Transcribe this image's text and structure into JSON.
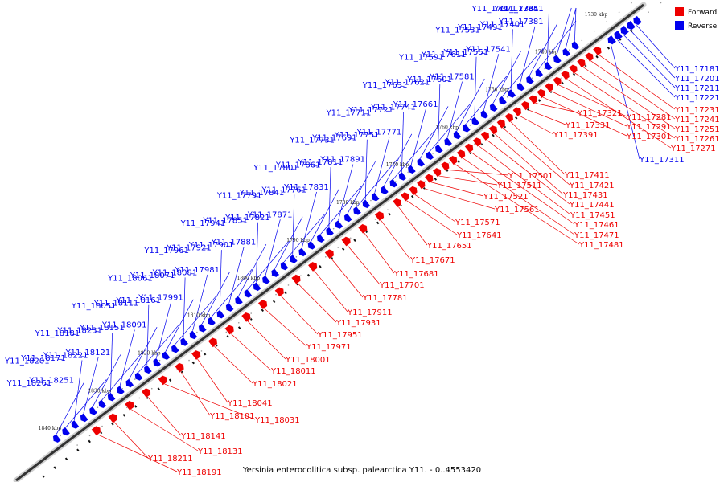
{
  "caption": "Yersinia enterocolitica subsp. palearctica Y11. - 0..4553420",
  "legend": [
    {
      "label": "Forward",
      "color": "#ee0000"
    },
    {
      "label": "Reverse",
      "color": "#0000ee"
    }
  ],
  "colors": {
    "forward": "#ee0000",
    "reverse": "#0000ee",
    "backbone": "#333333"
  },
  "kbp_ticks": [
    "1730 kbp",
    "1740 kbp",
    "1750 kbp",
    "1760 kbp",
    "1770 kbp",
    "1780 kbp",
    "1790 kbp",
    "1800 kbp",
    "1810 kbp",
    "1820 kbp",
    "1830 kbp",
    "1840 kbp"
  ],
  "reverse_genes_upper_left": [
    "Y11_17341",
    "Y11_17351",
    "Y11_17361",
    "Y11_17371",
    "Y11_17381",
    "Y11_17401",
    "Y11_17491",
    "Y11_17531",
    "Y11_17541",
    "Y11_17551",
    "Y11_17611",
    "Y11_17591",
    "Y11_17581",
    "Y11_17601",
    "Y11_17621",
    "Y11_17631",
    "Y11_17661",
    "Y11_17741",
    "Y11_17721",
    "Y11_17711",
    "Y11_17771",
    "Y11_17751",
    "Y11_17691",
    "Y11_17731",
    "Y11_17891",
    "Y11_17811",
    "Y11_17861",
    "Y11_17801",
    "Y11_17831",
    "Y11_17761",
    "Y11_17841",
    "Y11_17791",
    "Y11_17871",
    "Y11_17821",
    "Y11_17851",
    "Y11_17941",
    "Y11_17881",
    "Y11_17901",
    "Y11_17921",
    "Y11_17961",
    "Y11_17981",
    "Y11_18081",
    "Y11_18071",
    "Y11_18061",
    "Y11_17991",
    "Y11_18161",
    "Y11_18111",
    "Y11_18051",
    "Y11_18091",
    "Y11_18151",
    "Y11_18231",
    "Y11_18181",
    "Y11_18121",
    "Y11_18221",
    "Y11_18171",
    "Y11_18201",
    "Y11_18251",
    "Y11_18261"
  ],
  "reverse_genes_right": [
    "Y11_17181",
    "Y11_17201",
    "Y11_17211",
    "Y11_17221",
    "Y11_17311"
  ],
  "forward_genes_right": [
    "Y11_17231",
    "Y11_17241",
    "Y11_17251",
    "Y11_17261",
    "Y11_17271",
    "Y11_17281",
    "Y11_17291",
    "Y11_17301",
    "Y11_17321",
    "Y11_17331",
    "Y11_17391",
    "Y11_17411",
    "Y11_17421",
    "Y11_17431",
    "Y11_17441",
    "Y11_17451",
    "Y11_17461",
    "Y11_17471",
    "Y11_17481",
    "Y11_17501",
    "Y11_17511",
    "Y11_17521",
    "Y11_17561",
    "Y11_17571",
    "Y11_17641",
    "Y11_17651"
  ],
  "forward_genes_lower": [
    "Y11_17671",
    "Y11_17681",
    "Y11_17701",
    "Y11_17781",
    "Y11_17911",
    "Y11_17931",
    "Y11_17951",
    "Y11_17971",
    "Y11_18001",
    "Y11_18011",
    "Y11_18021",
    "Y11_18041",
    "Y11_18101",
    "Y11_18031",
    "Y11_18141",
    "Y11_18131",
    "Y11_18211",
    "Y11_18191"
  ]
}
